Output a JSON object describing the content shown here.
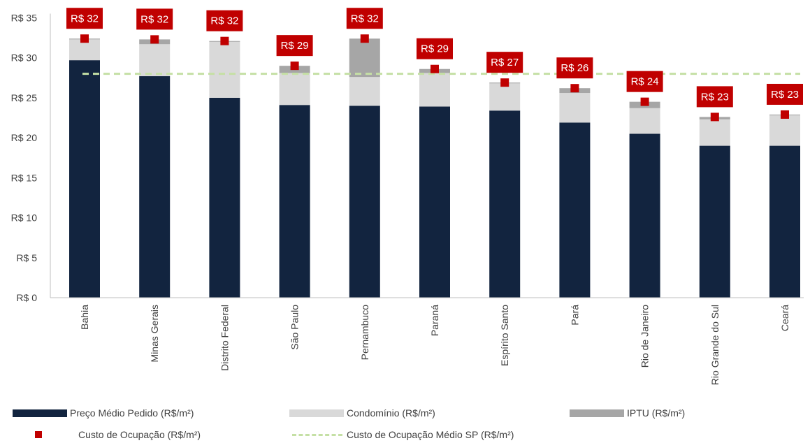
{
  "chart_data": {
    "type": "bar",
    "stacked": true,
    "categories": [
      "Bahia",
      "Minas Gerais",
      "Distrito Federal",
      "São Paulo",
      "Pernambuco",
      "Paraná",
      "Espírito Santo",
      "Pará",
      "Rio de Janeiro",
      "Rio Grande do Sul",
      "Ceará"
    ],
    "series": [
      {
        "name": "Preço Médio Pedido (R$/m²)",
        "color": "#12243f",
        "values": [
          29.7,
          27.7,
          25.0,
          24.1,
          24.0,
          23.9,
          23.4,
          21.9,
          20.5,
          19.0,
          19.0
        ]
      },
      {
        "name": "Condomínio (R$/m²)",
        "color": "#d9d9d9",
        "values": [
          2.6,
          4.0,
          7.0,
          4.0,
          3.6,
          4.2,
          3.4,
          3.7,
          3.2,
          3.3,
          3.8
        ]
      },
      {
        "name": "IPTU (R$/m²)",
        "color": "#a6a6a6",
        "values": [
          0.1,
          0.6,
          0.1,
          0.9,
          4.8,
          0.5,
          0.1,
          0.6,
          0.8,
          0.3,
          0.1
        ]
      }
    ],
    "markers": {
      "name": "Custo de Ocupação (R$/m²)",
      "color": "#c00000",
      "values": [
        32.4,
        32.3,
        32.1,
        29.0,
        32.4,
        28.6,
        26.9,
        26.2,
        24.5,
        22.6,
        22.9
      ],
      "labels": [
        "R$ 32",
        "R$ 32",
        "R$ 32",
        "R$ 29",
        "R$ 32",
        "R$ 29",
        "R$ 27",
        "R$ 26",
        "R$ 24",
        "R$ 23",
        "R$ 23"
      ]
    },
    "reference_line": {
      "name": "Custo de Ocupação Médio SP (R$/m²)",
      "value": 28.0,
      "color": "#c5e0a5"
    },
    "y_ticks": [
      "R$ 0",
      "R$ 5",
      "R$ 10",
      "R$ 15",
      "R$ 20",
      "R$ 25",
      "R$ 30",
      "R$ 35"
    ],
    "ylim": [
      0,
      35
    ],
    "grid": false,
    "legend_position": "bottom"
  }
}
